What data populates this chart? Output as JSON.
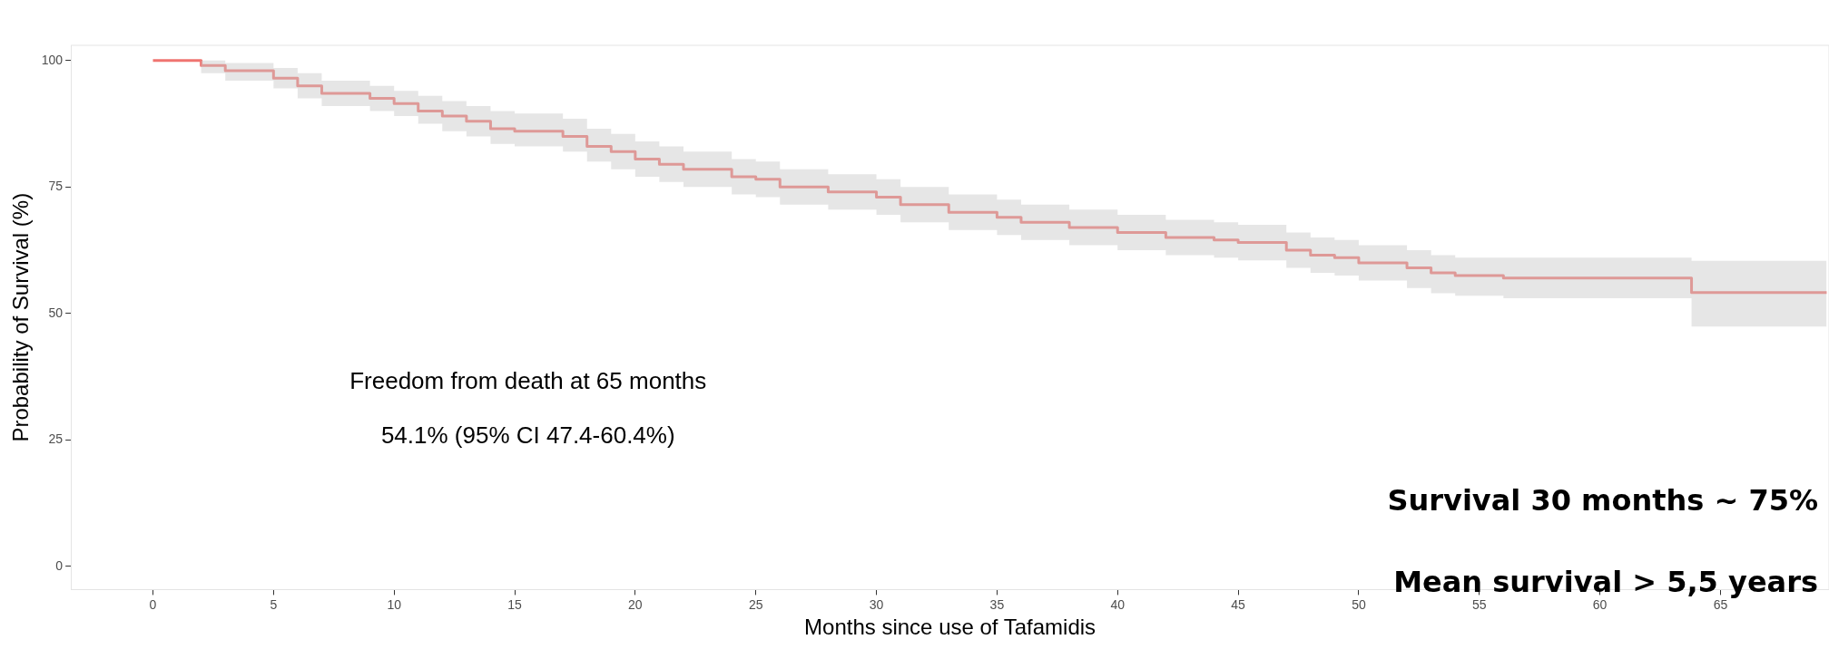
{
  "chart_data": {
    "type": "step",
    "xlabel": "Months since use of Tafamidis",
    "ylabel": "Probability of Survival (%)",
    "annotations": [
      "Freedom from death at 65 months",
      "54.1% (95% CI 47.4-60.4%)",
      "Survival 30 months ~ 75%",
      "Mean survival > 5,5 years"
    ],
    "series": [
      {
        "color": "#f07470",
        "x": [
          0,
          2,
          3,
          5,
          6,
          7,
          9,
          10,
          11,
          12,
          13,
          14,
          15,
          17,
          18,
          19,
          20,
          21,
          22,
          24,
          25,
          26,
          28,
          30,
          31,
          33,
          35,
          36,
          38,
          40,
          42,
          44,
          45,
          47,
          48,
          49,
          50,
          52,
          53,
          54,
          56,
          63.8,
          69.4
        ],
        "values": [
          100,
          99,
          98,
          96.5,
          95,
          93.5,
          92.5,
          91.5,
          90,
          89,
          88,
          86.5,
          86,
          85,
          83,
          82,
          80.5,
          79.5,
          78.5,
          77,
          76.5,
          75,
          74,
          73,
          71.5,
          70,
          69,
          68,
          67,
          66,
          65,
          64.5,
          64,
          62.5,
          61.5,
          61,
          60,
          59,
          58,
          57.5,
          57,
          54.1,
          54.1
        ],
        "lower": [
          100,
          97.5,
          96,
          94.5,
          92.5,
          91,
          90,
          89,
          87.5,
          86,
          85,
          83.5,
          83,
          82,
          80,
          78.5,
          77,
          76,
          75,
          73.5,
          73,
          71.5,
          70.5,
          69.5,
          68,
          66.5,
          65.5,
          64.5,
          63.5,
          62.5,
          61.5,
          61,
          60.5,
          59,
          58,
          57.5,
          56.5,
          55,
          54,
          53.5,
          53,
          47.4,
          47.4
        ],
        "upper": [
          100,
          100,
          99.5,
          98.5,
          97.5,
          96,
          95,
          94,
          93,
          92,
          91,
          90,
          89.5,
          88.5,
          86.5,
          85.5,
          84,
          83,
          82,
          80.5,
          80,
          78.5,
          77.5,
          76.5,
          75,
          73.5,
          72.5,
          71.5,
          70.5,
          69.5,
          68.5,
          68,
          67.5,
          66,
          65,
          64.5,
          63.5,
          62.5,
          61.5,
          61,
          61,
          60.4,
          60.4
        ]
      }
    ],
    "xlim": [
      -3.4,
      69.5
    ],
    "ylim": [
      -4.6,
      103
    ],
    "xticks": [
      0,
      5,
      10,
      15,
      20,
      25,
      30,
      35,
      40,
      45,
      50,
      55,
      60,
      65
    ],
    "yticks": [
      0,
      25,
      50,
      75,
      100
    ],
    "grid": false,
    "legend": false,
    "marker": "none",
    "line_style": "solid"
  }
}
